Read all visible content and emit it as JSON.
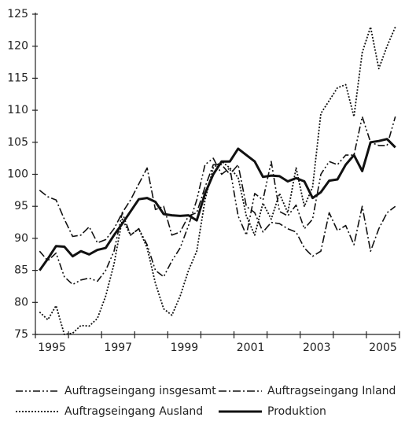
{
  "chart_data": {
    "type": "line",
    "categories": [
      null,
      "1995",
      null,
      null,
      null,
      null,
      null,
      null,
      null,
      "1997",
      null,
      null,
      null,
      null,
      null,
      null,
      null,
      "1999",
      null,
      null,
      null,
      null,
      null,
      null,
      null,
      "2001",
      null,
      null,
      null,
      null,
      null,
      null,
      null,
      "2003",
      null,
      null,
      null,
      null,
      null,
      null,
      null,
      "2005",
      null,
      null
    ],
    "ylim": [
      75,
      125
    ],
    "yticks": [
      75,
      80,
      85,
      90,
      95,
      100,
      105,
      110,
      115,
      120,
      125
    ],
    "series": [
      {
        "name": "Auftragseingang insgesamt",
        "color": "#111111",
        "dash": "9 3 2 3 2 3",
        "linewidth": 1.6,
        "values": [
          88,
          86.5,
          87.7,
          84,
          82.8,
          83.5,
          83.8,
          83.3,
          85,
          88,
          94,
          90.5,
          91.5,
          89,
          85,
          84,
          86.5,
          88.5,
          92,
          96,
          101.5,
          102.5,
          100,
          101,
          93.5,
          90.5,
          97,
          96,
          102,
          94.2,
          93.5,
          95.2,
          91.5,
          93,
          100,
          102,
          101.5,
          103,
          103,
          109,
          105,
          104.5,
          104.5,
          109
        ]
      },
      {
        "name": "Auftragseingang Inland",
        "color": "#111111",
        "dash": "10 3 2 3",
        "linewidth": 1.6,
        "values": [
          97.5,
          96.5,
          96,
          93,
          90.3,
          90.5,
          91.8,
          89.3,
          89.8,
          91.5,
          94,
          96,
          98.5,
          101,
          94.5,
          95,
          90.5,
          91,
          93.5,
          94,
          98,
          101.5,
          101.5,
          100,
          101.5,
          95,
          94,
          91,
          92.5,
          92.3,
          91.5,
          91,
          88.5,
          87.2,
          88,
          94,
          91.2,
          92,
          89,
          95,
          88,
          91.5,
          94,
          95
        ]
      },
      {
        "name": "Auftragseingang Ausland",
        "color": "#111111",
        "dash": "2 2",
        "linewidth": 1.8,
        "values": [
          78.5,
          77.3,
          79.5,
          75,
          75.2,
          76.4,
          76.3,
          77.5,
          81,
          86,
          93,
          90.5,
          91.5,
          88.5,
          83,
          79,
          78,
          81,
          85,
          88,
          96,
          101,
          102,
          101,
          99.5,
          93.5,
          90.5,
          95.5,
          93,
          97,
          94,
          101,
          95,
          98,
          109.5,
          111.5,
          113.5,
          114,
          109,
          119,
          123,
          116.5,
          120,
          123
        ]
      },
      {
        "name": "Produktion",
        "color": "#111111",
        "linewidth": 3,
        "values": [
          85,
          86.8,
          88.8,
          88.7,
          87.2,
          88,
          87.5,
          88.2,
          88.5,
          90.5,
          92.3,
          94.2,
          96.1,
          96.3,
          95.7,
          93.8,
          93.6,
          93.5,
          93.6,
          92.8,
          97,
          100,
          102,
          102,
          104,
          103,
          102,
          99.6,
          99.8,
          99.7,
          98.9,
          99.4,
          98.9,
          96.3,
          97.2,
          99,
          99.2,
          101.5,
          103,
          100.5,
          105,
          105.2,
          105.5,
          104.2
        ]
      }
    ]
  }
}
